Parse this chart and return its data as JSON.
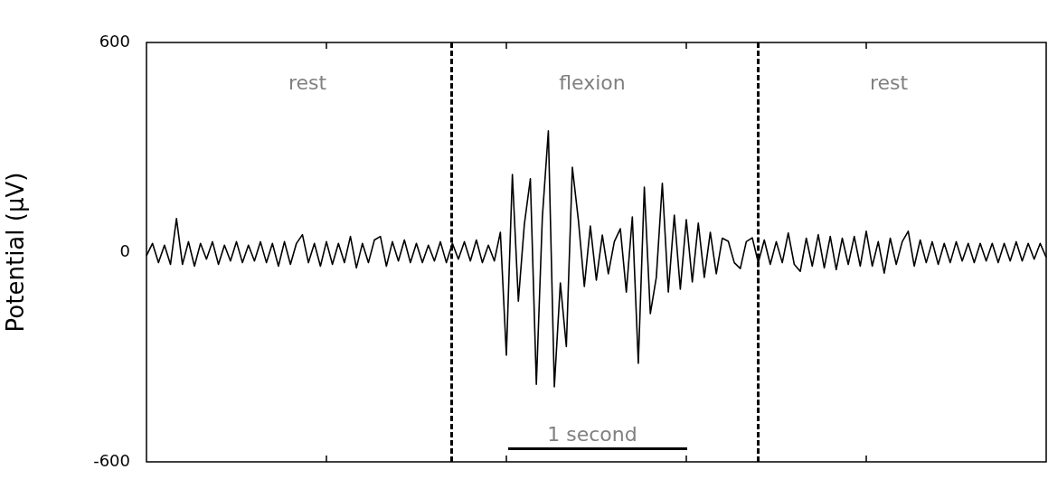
{
  "chart_data": {
    "type": "line",
    "ylabel": "Potential (μV)",
    "ylim": [
      -600,
      600
    ],
    "yticks": [
      -600,
      0,
      600
    ],
    "grid": false,
    "legend": false,
    "marker": "none",
    "line_style": "solid",
    "tick_labels": "y",
    "categories": [
      null,
      null,
      null,
      null,
      null,
      null,
      null,
      null,
      null,
      null,
      null,
      null,
      null,
      null,
      null,
      null,
      null,
      null,
      null,
      null,
      null,
      null,
      null,
      null,
      null,
      null,
      null,
      null,
      null,
      null,
      null,
      null,
      null,
      null,
      null,
      null,
      null,
      null,
      null,
      null,
      null,
      null,
      null,
      null,
      null,
      null,
      null,
      null,
      null,
      null,
      null,
      null,
      null,
      null,
      null,
      null,
      null,
      null,
      null,
      null,
      null,
      null,
      null,
      null,
      null,
      null,
      null,
      null,
      null,
      null,
      null,
      null,
      null,
      null,
      null,
      null,
      null,
      null,
      null,
      null,
      null,
      null,
      null,
      null,
      null,
      null,
      null,
      null,
      null,
      null,
      null,
      null,
      null,
      null,
      null,
      null,
      null,
      null,
      null,
      null,
      null,
      null,
      null,
      null,
      null,
      null,
      null,
      null,
      null,
      null,
      null,
      null,
      null,
      null,
      null,
      null,
      null,
      null,
      null,
      null,
      null,
      null,
      null,
      null,
      null,
      null,
      null,
      null,
      null,
      null,
      null,
      null,
      null,
      null,
      null,
      null,
      null,
      null,
      null,
      null,
      null,
      null,
      null,
      null,
      null,
      null,
      null,
      null,
      null,
      null,
      null
    ],
    "series": [
      {
        "color": "#000000",
        "values": [
          -10,
          25,
          -30,
          20,
          -35,
          96,
          -35,
          30,
          -40,
          25,
          -20,
          30,
          -35,
          20,
          -25,
          30,
          -30,
          20,
          -25,
          30,
          -30,
          25,
          -40,
          30,
          -35,
          25,
          50,
          -30,
          25,
          -40,
          30,
          -35,
          25,
          -30,
          45,
          -45,
          25,
          -30,
          35,
          45,
          -40,
          30,
          -25,
          35,
          -30,
          25,
          -30,
          20,
          -25,
          30,
          -30,
          25,
          -20,
          30,
          -25,
          35,
          -30,
          20,
          -25,
          57,
          -295,
          222,
          -140,
          80,
          210,
          -378,
          100,
          347,
          -385,
          -88,
          -270,
          243,
          93,
          -98,
          75,
          -80,
          49,
          -62,
          30,
          67,
          -114,
          101,
          -318,
          186,
          -176,
          -72,
          197,
          -114,
          106,
          -106,
          93,
          -85,
          83,
          -72,
          57,
          -62,
          40,
          31,
          -30,
          -47,
          30,
          41,
          -30,
          35,
          -35,
          30,
          -30,
          55,
          -35,
          -55,
          40,
          -40,
          50,
          -45,
          45,
          -50,
          40,
          -35,
          45,
          -40,
          60,
          -40,
          30,
          -60,
          40,
          -35,
          30,
          60,
          -40,
          35,
          -30,
          30,
          -35,
          25,
          -30,
          30,
          -25,
          25,
          -30,
          25,
          -25,
          25,
          -30,
          25,
          -25,
          30,
          -25,
          25,
          -20,
          25,
          -15
        ]
      }
    ],
    "annotations": [
      "rest",
      "flexion",
      "rest",
      "1 second"
    ]
  }
}
